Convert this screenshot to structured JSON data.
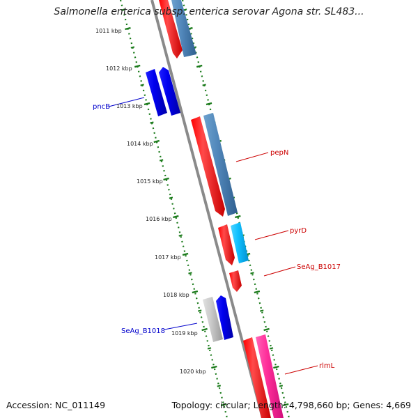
{
  "title": "Salmonella enterica subsp. enterica serovar Agona str. SL483...",
  "footer": {
    "accession": "Accession: NC_011149",
    "topology": "Topology: circular; Length: 4,798,660 bp; Genes: 4,669"
  },
  "ticks": [
    {
      "label": "1011 kbp",
      "kbp": 1011
    },
    {
      "label": "1012 kbp",
      "kbp": 1012
    },
    {
      "label": "1013 kbp",
      "kbp": 1013
    },
    {
      "label": "1014 kbp",
      "kbp": 1014
    },
    {
      "label": "1015 kbp",
      "kbp": 1015
    },
    {
      "label": "1016 kbp",
      "kbp": 1016
    },
    {
      "label": "1017 kbp",
      "kbp": 1017
    },
    {
      "label": "1018 kbp",
      "kbp": 1018
    },
    {
      "label": "1019 kbp",
      "kbp": 1019
    },
    {
      "label": "1020 kbp",
      "kbp": 1020
    }
  ],
  "gene_labels": [
    {
      "name": "pncB",
      "color": "#0000cc"
    },
    {
      "name": "pepN",
      "color": "#cc0000"
    },
    {
      "name": "pyrD",
      "color": "#cc0000"
    },
    {
      "name": "SeAg_B1017",
      "color": "#cc0000"
    },
    {
      "name": "SeAg_B1018",
      "color": "#0000cc"
    },
    {
      "name": "rlmL",
      "color": "#cc0000"
    }
  ],
  "colors": {
    "red": "#ff0000",
    "steel_blue": "#4f86b8",
    "blue": "#0000ee",
    "cyan": "#00bfff",
    "grey": "#c8c8c8",
    "pink": "#ff2f9a",
    "backbone": "#8a8a8a",
    "tick_green": "#1a7a1a"
  }
}
